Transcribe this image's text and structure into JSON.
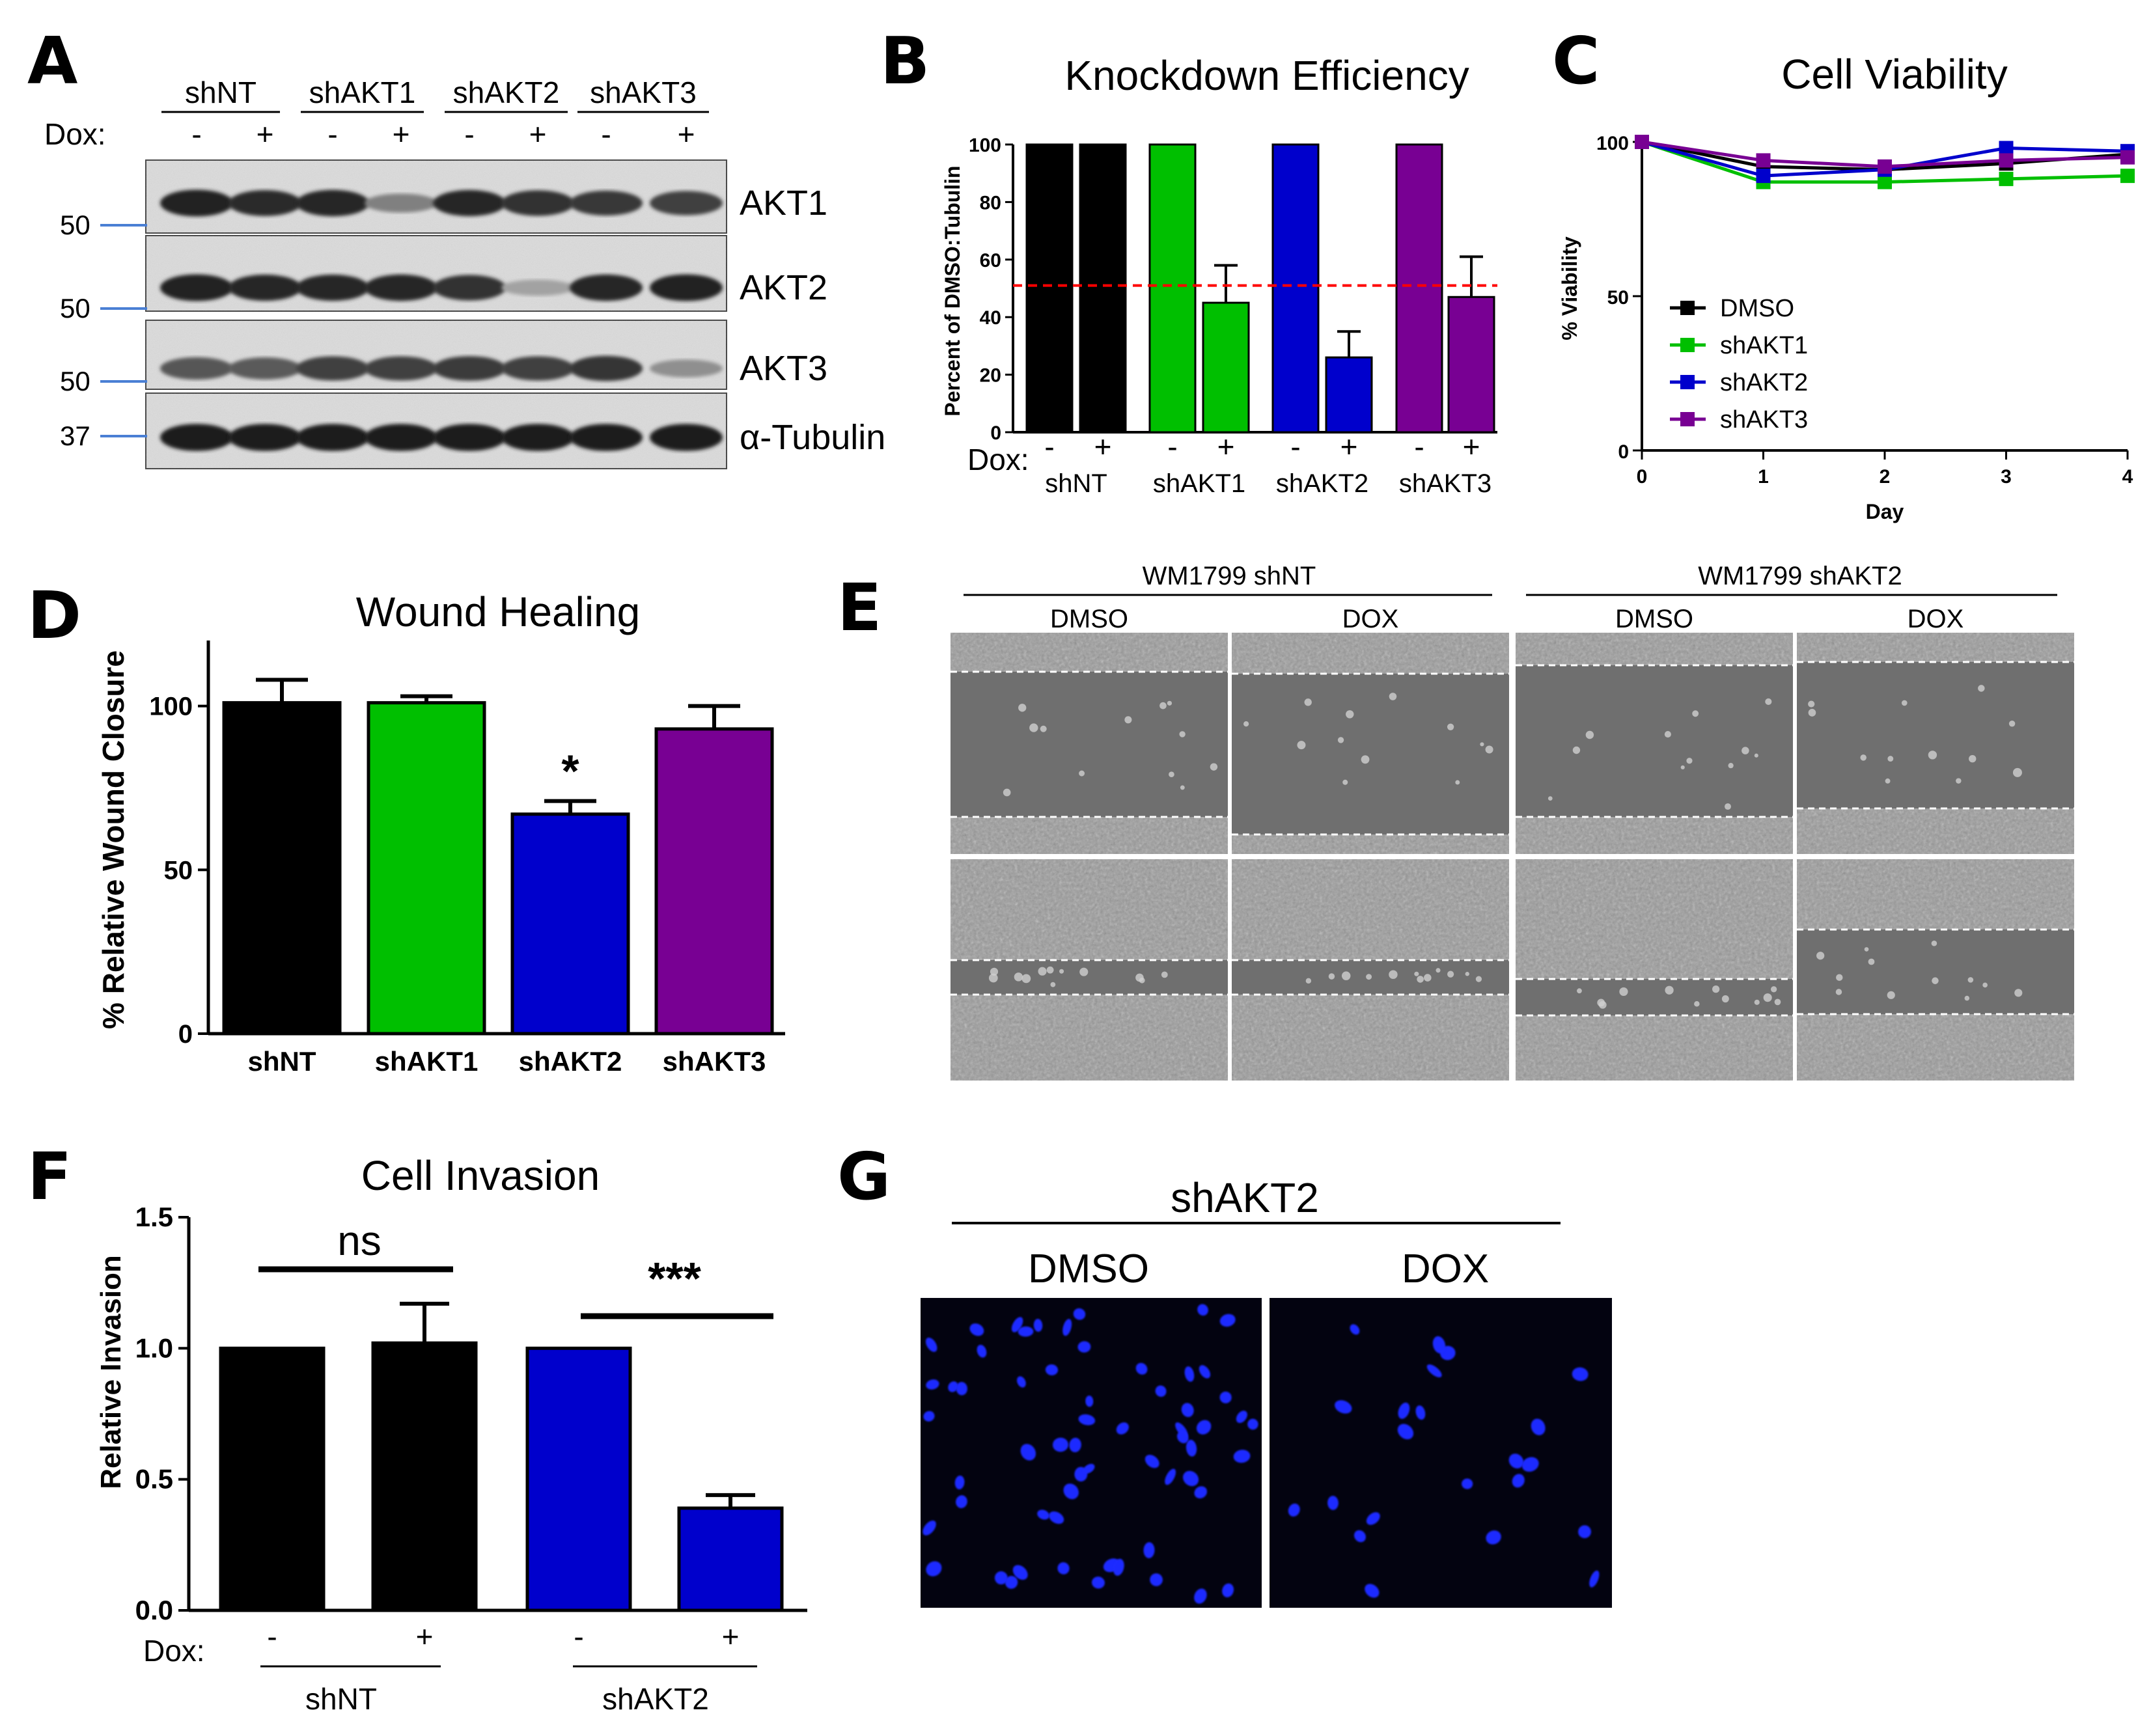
{
  "figure": {
    "panel_letters": [
      "A",
      "B",
      "C",
      "D",
      "E",
      "F",
      "G"
    ],
    "colors": {
      "shNT": "#000000",
      "shAKT1": "#00bf00",
      "shAKT2": "#0000cc",
      "shAKT3": "#780093",
      "threshold": "#ff0000",
      "mw_marker": "#4a7fd4"
    }
  },
  "panelA": {
    "groups": [
      "shNT",
      "shAKT1",
      "shAKT2",
      "shAKT3"
    ],
    "dox_label": "Dox:",
    "dox_signs": [
      "-",
      "+",
      "-",
      "+",
      "-",
      "+",
      "-",
      "+"
    ],
    "bands": [
      "AKT1",
      "AKT2",
      "AKT3",
      "α-Tubulin"
    ],
    "mw_markers": [
      "50",
      "50",
      "50",
      "37"
    ],
    "intensity": [
      [
        0.88,
        0.82,
        0.86,
        0.38,
        0.84,
        0.8,
        0.76,
        0.72
      ],
      [
        0.88,
        0.84,
        0.84,
        0.86,
        0.8,
        0.2,
        0.86,
        0.88
      ],
      [
        0.6,
        0.58,
        0.72,
        0.72,
        0.74,
        0.72,
        0.78,
        0.3
      ],
      [
        0.9,
        0.9,
        0.9,
        0.9,
        0.9,
        0.9,
        0.9,
        0.9
      ]
    ]
  },
  "panelC_legend": [
    "DMSO",
    "shAKT1",
    "shAKT2",
    "shAKT3"
  ],
  "panelE": {
    "headers": [
      "WM1799 shNT",
      "WM1799 shAKT2"
    ],
    "conditions": [
      "DMSO",
      "DOX",
      "DMSO",
      "DOX"
    ]
  },
  "panelF_labels": {
    "sig_left": "ns",
    "sig_right": "***",
    "dox_label": "Dox:",
    "groups": [
      "shNT",
      "shAKT2"
    ]
  },
  "panelG": {
    "header": "shAKT2",
    "conditions": [
      "DMSO",
      "DOX"
    ]
  },
  "chart_data": [
    {
      "id": "B",
      "type": "bar",
      "title": "Knockdown Efficiency",
      "ylabel": "Percent of DMSO:Tubulin",
      "ylim": [
        0,
        100
      ],
      "yticks": [
        0,
        20,
        40,
        60,
        80,
        100
      ],
      "dox_label": "Dox:",
      "dox": [
        "-",
        "+",
        "-",
        "+",
        "-",
        "+",
        "-",
        "+"
      ],
      "groups": [
        "shNT",
        "shAKT1",
        "shAKT2",
        "shAKT3"
      ],
      "values": [
        100,
        100,
        100,
        45,
        100,
        26,
        100,
        47
      ],
      "errors": [
        0,
        0,
        0,
        13,
        0,
        9,
        0,
        14
      ],
      "threshold": 51
    },
    {
      "id": "C",
      "type": "line",
      "title": "Cell Viability",
      "xlabel": "Day",
      "ylabel": "% Viability",
      "x": [
        0,
        1,
        2,
        3,
        4
      ],
      "ylim": [
        0,
        100
      ],
      "yticks": [
        0,
        50,
        100
      ],
      "series": [
        {
          "name": "DMSO",
          "color": "#000000",
          "values": [
            100,
            92,
            91,
            93,
            96
          ]
        },
        {
          "name": "shAKT1",
          "color": "#00bf00",
          "values": [
            100,
            87,
            87,
            88,
            89
          ]
        },
        {
          "name": "shAKT2",
          "color": "#0000cc",
          "values": [
            100,
            89,
            91,
            98,
            97
          ]
        },
        {
          "name": "shAKT3",
          "color": "#780093",
          "values": [
            100,
            94,
            92,
            94,
            95
          ]
        }
      ]
    },
    {
      "id": "D",
      "type": "bar",
      "title": "Wound Healing",
      "ylabel": "% Relative Wound  Closure",
      "ylim": [
        0,
        120
      ],
      "yticks": [
        0,
        50,
        100
      ],
      "categories": [
        "shNT",
        "shAKT1",
        "shAKT2",
        "shAKT3"
      ],
      "values": [
        101,
        101,
        67,
        93
      ],
      "errors": [
        7,
        2,
        4,
        7
      ],
      "significance": [
        "",
        "",
        "*",
        ""
      ]
    },
    {
      "id": "F",
      "type": "bar",
      "title": "Cell Invasion",
      "ylabel": "Relative Invasion",
      "ylim": [
        0,
        1.5
      ],
      "yticks": [
        "0.0",
        "0.5",
        "1.0",
        "1.5"
      ],
      "dox": [
        "-",
        "+",
        "-",
        "+"
      ],
      "groups": [
        "shNT",
        "shAKT2"
      ],
      "values": [
        1.0,
        1.02,
        1.0,
        0.39
      ],
      "errors": [
        0,
        0.15,
        0,
        0.05
      ]
    }
  ]
}
